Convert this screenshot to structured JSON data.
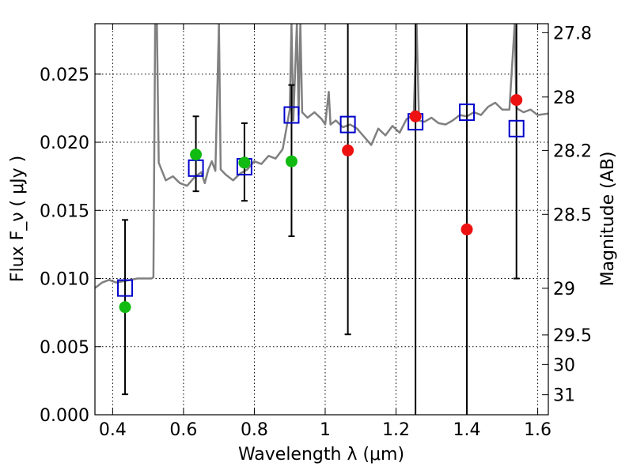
{
  "chart_data": {
    "type": "scatter",
    "xlabel": "Wavelength  λ (μm)",
    "ylabel": "Flux  F_ν  ( μJy )",
    "ylabel_right": "Magnitude (AB)",
    "xlim": [
      0.35,
      1.63
    ],
    "ylim": [
      0.0,
      0.0287
    ],
    "x_ticks": [
      0.4,
      0.6,
      0.8,
      1.0,
      1.2,
      1.4,
      1.6
    ],
    "x_tick_labels": [
      "0.4",
      "0.6",
      "0.8",
      "1",
      "1.2",
      "1.4",
      "1.6"
    ],
    "y_ticks": [
      0.0,
      0.005,
      0.01,
      0.015,
      0.02,
      0.025
    ],
    "y_tick_labels": [
      "0.000",
      "0.005",
      "0.010",
      "0.015",
      "0.020",
      "0.025"
    ],
    "right_ticks": [
      {
        "label": "27.8",
        "flux": 0.02804
      },
      {
        "label": "28",
        "flux": 0.02332
      },
      {
        "label": "28.2",
        "flux": 0.0194
      },
      {
        "label": "28.5",
        "flux": 0.01471
      },
      {
        "label": "29",
        "flux": 0.00928
      },
      {
        "label": "29.5",
        "flux": 0.00586
      },
      {
        "label": "30",
        "flux": 0.00369
      },
      {
        "label": "31",
        "flux": 0.00147
      }
    ],
    "grid": true,
    "colors": {
      "sed": "#808080",
      "model_box": "#0000cc",
      "green_point": "#11bb11",
      "red_point": "#ee1111",
      "errorbar": "#000000"
    },
    "sed_spectrum": [
      [
        0.35,
        0.0093
      ],
      [
        0.37,
        0.0097
      ],
      [
        0.39,
        0.0099
      ],
      [
        0.41,
        0.0097
      ],
      [
        0.43,
        0.0098
      ],
      [
        0.45,
        0.0099
      ],
      [
        0.47,
        0.01
      ],
      [
        0.49,
        0.01
      ],
      [
        0.51,
        0.01
      ],
      [
        0.515,
        0.0101
      ],
      [
        0.52,
        0.0287
      ],
      [
        0.525,
        0.0287
      ],
      [
        0.53,
        0.0185
      ],
      [
        0.55,
        0.0172
      ],
      [
        0.57,
        0.0175
      ],
      [
        0.59,
        0.017
      ],
      [
        0.61,
        0.0168
      ],
      [
        0.63,
        0.0174
      ],
      [
        0.65,
        0.0178
      ],
      [
        0.66,
        0.017
      ],
      [
        0.67,
        0.018
      ],
      [
        0.68,
        0.0186
      ],
      [
        0.69,
        0.0179
      ],
      [
        0.7,
        0.0287
      ],
      [
        0.705,
        0.018
      ],
      [
        0.72,
        0.0176
      ],
      [
        0.74,
        0.0172
      ],
      [
        0.76,
        0.0177
      ],
      [
        0.78,
        0.018
      ],
      [
        0.8,
        0.0186
      ],
      [
        0.82,
        0.0184
      ],
      [
        0.84,
        0.019
      ],
      [
        0.86,
        0.0188
      ],
      [
        0.88,
        0.0195
      ],
      [
        0.9,
        0.0224
      ],
      [
        0.905,
        0.0287
      ],
      [
        0.91,
        0.0216
      ],
      [
        0.92,
        0.0287
      ],
      [
        0.925,
        0.022
      ],
      [
        0.93,
        0.0287
      ],
      [
        0.935,
        0.0222
      ],
      [
        0.95,
        0.0218
      ],
      [
        0.97,
        0.0222
      ],
      [
        0.99,
        0.0217
      ],
      [
        1.0,
        0.0213
      ],
      [
        1.01,
        0.0237
      ],
      [
        1.015,
        0.0213
      ],
      [
        1.03,
        0.0216
      ],
      [
        1.05,
        0.0211
      ],
      [
        1.07,
        0.0213
      ],
      [
        1.09,
        0.021
      ],
      [
        1.11,
        0.0204
      ],
      [
        1.13,
        0.0198
      ],
      [
        1.15,
        0.021
      ],
      [
        1.17,
        0.0205
      ],
      [
        1.19,
        0.0212
      ],
      [
        1.21,
        0.0207
      ],
      [
        1.23,
        0.0217
      ],
      [
        1.25,
        0.022
      ],
      [
        1.258,
        0.0287
      ],
      [
        1.265,
        0.0216
      ],
      [
        1.28,
        0.0215
      ],
      [
        1.3,
        0.0218
      ],
      [
        1.32,
        0.0214
      ],
      [
        1.34,
        0.0213
      ],
      [
        1.36,
        0.0216
      ],
      [
        1.38,
        0.022
      ],
      [
        1.4,
        0.0219
      ],
      [
        1.42,
        0.0222
      ],
      [
        1.44,
        0.022
      ],
      [
        1.46,
        0.0226
      ],
      [
        1.48,
        0.0229
      ],
      [
        1.5,
        0.0224
      ],
      [
        1.52,
        0.0224
      ],
      [
        1.535,
        0.0287
      ],
      [
        1.54,
        0.0225
      ],
      [
        1.56,
        0.0222
      ],
      [
        1.58,
        0.0224
      ],
      [
        1.6,
        0.022
      ],
      [
        1.63,
        0.0221
      ]
    ],
    "model_boxes": [
      {
        "x": 0.435,
        "y": 0.0093
      },
      {
        "x": 0.635,
        "y": 0.0181
      },
      {
        "x": 0.772,
        "y": 0.0182
      },
      {
        "x": 0.905,
        "y": 0.022
      },
      {
        "x": 1.064,
        "y": 0.0213
      },
      {
        "x": 1.255,
        "y": 0.0215
      },
      {
        "x": 1.4,
        "y": 0.0222
      },
      {
        "x": 1.54,
        "y": 0.021
      }
    ],
    "observations": [
      {
        "x": 0.435,
        "y": 0.0079,
        "lo": 0.0015,
        "hi": 0.0143,
        "color": "green"
      },
      {
        "x": 0.635,
        "y": 0.0191,
        "lo": 0.0164,
        "hi": 0.0219,
        "color": "green"
      },
      {
        "x": 0.772,
        "y": 0.0185,
        "lo": 0.0157,
        "hi": 0.0214,
        "color": "green"
      },
      {
        "x": 0.905,
        "y": 0.0186,
        "lo": 0.0131,
        "hi": 0.0242,
        "color": "green"
      },
      {
        "x": 1.064,
        "y": 0.0194,
        "lo": 0.0059,
        "hi": 0.0287,
        "color": "red"
      },
      {
        "x": 1.255,
        "y": 0.0219,
        "lo": 0.0,
        "hi": 0.0287,
        "color": "red"
      },
      {
        "x": 1.4,
        "y": 0.0136,
        "lo": 0.0,
        "hi": 0.0287,
        "color": "red"
      },
      {
        "x": 1.54,
        "y": 0.0231,
        "lo": 0.01,
        "hi": 0.0287,
        "color": "red"
      }
    ]
  }
}
